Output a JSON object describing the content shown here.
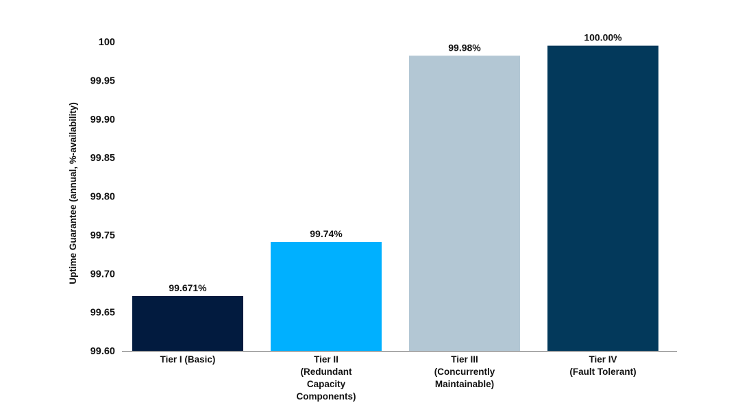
{
  "chart_data": {
    "type": "bar",
    "title": "",
    "xlabel": "",
    "ylabel": "Uptime Guarantee (annual, %-availability)",
    "ylim": [
      99.6,
      100.0
    ],
    "grid": false,
    "yticks": [
      "99.60",
      "99.65",
      "99.70",
      "99.75",
      "99.80",
      "99.85",
      "99.90",
      "99.95",
      "100"
    ],
    "ytick_values": [
      99.6,
      99.65,
      99.7,
      99.75,
      99.8,
      99.85,
      99.9,
      99.95,
      100.0
    ],
    "categories": [
      [
        "Tier I (Basic)"
      ],
      [
        "Tier II",
        "(Redundant",
        "Capacity",
        "Components)"
      ],
      [
        "Tier III",
        "(Concurrently",
        "Maintainable)"
      ],
      [
        "Tier IV",
        "(Fault Tolerant)"
      ]
    ],
    "values": [
      99.671,
      99.741,
      99.982,
      99.995
    ],
    "data_labels": [
      "99.671%",
      "99.74%",
      "99.98%",
      "100.00%"
    ],
    "colors": [
      "#021b3f",
      "#00b0ff",
      "#b3c7d4",
      "#03395b"
    ]
  }
}
